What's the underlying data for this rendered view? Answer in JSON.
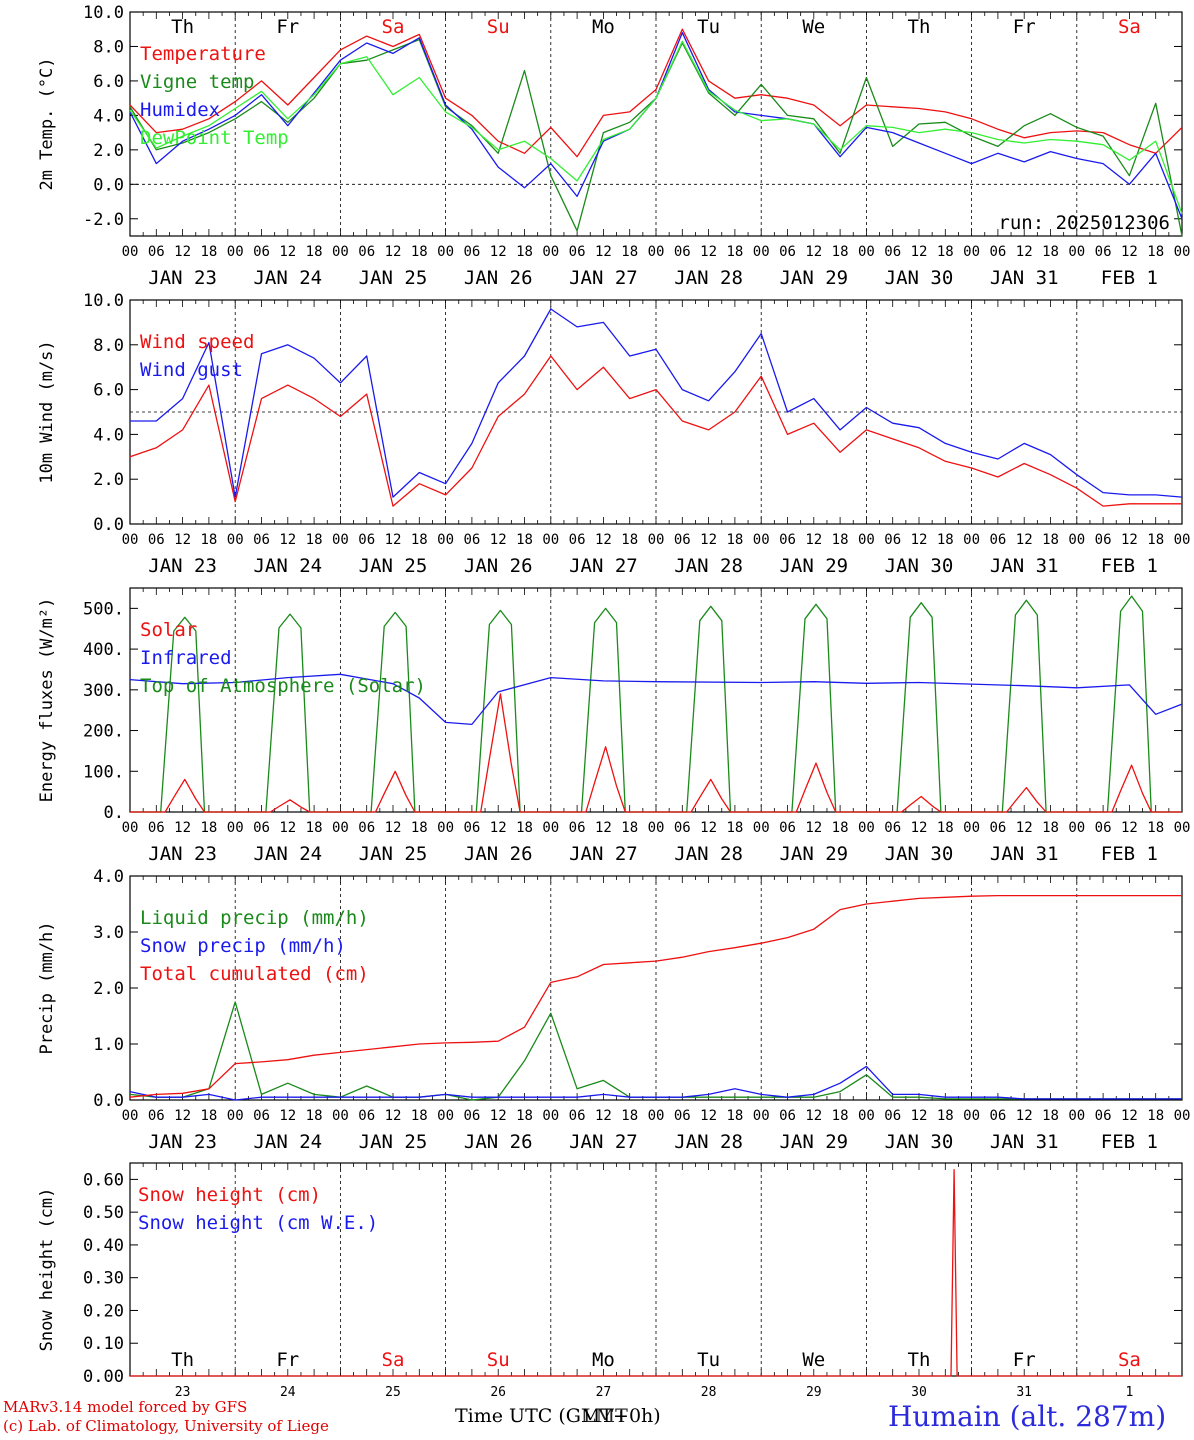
{
  "colors": {
    "red": "#ee1111",
    "green": "#1a8a1a",
    "blue": "#1a1aee",
    "lime": "#33ee33",
    "frame": "#000000",
    "weekend": "#ee1111"
  },
  "days": {
    "weekday_top": [
      "Th",
      "Fr",
      "Sa",
      "Su",
      "Mo",
      "Tu",
      "We",
      "Th",
      "Fr",
      "Sa"
    ],
    "weekend_flags": [
      false,
      false,
      true,
      true,
      false,
      false,
      false,
      false,
      false,
      true
    ],
    "date_labels": [
      "JAN 23",
      "JAN 24",
      "JAN 25",
      "JAN 26",
      "JAN 27",
      "JAN 28",
      "JAN 29",
      "JAN 30",
      "JAN 31",
      "FEB  1"
    ],
    "hour_ticks": [
      "00",
      "06",
      "12",
      "18"
    ],
    "day_numbers": [
      "23",
      "24",
      "25",
      "26",
      "27",
      "28",
      "29",
      "30",
      "31",
      "1"
    ]
  },
  "footer": {
    "credit_line1": "MARv3.14 model forced by GFS",
    "credit_line2": "(c) Lab. of Climatology, University of Liege",
    "x_title_a": "Time UTC (GMT+0h)",
    "x_title_b": "LMT",
    "station": "Humain (alt. 287m)"
  },
  "chart_data": [
    {
      "type": "line",
      "ylabel": "2m Temp. (°C)",
      "ylim": [
        -3,
        10
      ],
      "yticks": [
        "-2.0",
        "0.0",
        "2.0",
        "4.0",
        "6.0",
        "8.0",
        "10.0"
      ],
      "ytick_values": [
        -2,
        0,
        2,
        4,
        6,
        8,
        10
      ],
      "ref_line": 0,
      "annotation": "run: 2025012306",
      "x_hours": [
        0,
        6,
        12,
        18,
        24,
        30,
        36,
        42,
        48,
        54,
        60,
        66,
        72,
        78,
        84,
        90,
        96,
        102,
        108,
        114,
        120,
        126,
        132,
        138,
        144,
        150,
        156,
        162,
        168,
        174,
        180,
        186,
        192,
        198,
        204,
        210,
        216,
        222,
        228,
        234,
        240
      ],
      "series": [
        {
          "name": "Temperature",
          "color": "red",
          "values": [
            4.6,
            3.0,
            3.2,
            3.8,
            4.8,
            6.0,
            4.6,
            6.2,
            7.8,
            8.6,
            8.0,
            8.7,
            5.0,
            4.0,
            2.5,
            1.8,
            3.3,
            1.6,
            4.0,
            4.2,
            5.5,
            9.0,
            6.0,
            5.0,
            5.2,
            5.0,
            4.6,
            3.4,
            4.6,
            4.5,
            4.4,
            4.2,
            3.8,
            3.2,
            2.7,
            3.0,
            3.1,
            3.0,
            2.3,
            1.8,
            3.3
          ]
        },
        {
          "name": "Vigne temp",
          "color": "green",
          "values": [
            4.5,
            2.0,
            2.4,
            3.0,
            3.8,
            4.8,
            3.6,
            5.0,
            7.0,
            7.2,
            7.8,
            8.4,
            4.5,
            3.4,
            1.8,
            6.6,
            0.5,
            -2.7,
            3.0,
            3.6,
            5.0,
            8.2,
            5.3,
            4.0,
            5.8,
            4.0,
            3.8,
            1.8,
            6.2,
            2.2,
            3.5,
            3.6,
            2.8,
            2.2,
            3.4,
            4.1,
            3.3,
            2.8,
            0.5,
            4.7,
            -3.0
          ]
        },
        {
          "name": "Humidex",
          "color": "blue",
          "values": [
            4.2,
            1.2,
            2.5,
            3.2,
            4.0,
            5.2,
            3.4,
            5.3,
            7.2,
            8.2,
            7.6,
            8.5,
            4.6,
            3.2,
            1.0,
            -0.2,
            1.2,
            -0.7,
            2.5,
            3.2,
            5.0,
            8.8,
            5.5,
            4.2,
            4.0,
            3.8,
            3.5,
            1.6,
            3.3,
            3.0,
            2.4,
            1.8,
            1.2,
            1.8,
            1.3,
            1.9,
            1.5,
            1.2,
            0.0,
            1.8,
            -2.0
          ]
        },
        {
          "name": "DewPoint Temp",
          "color": "lime",
          "values": [
            4.3,
            2.1,
            2.8,
            3.4,
            4.4,
            5.4,
            3.8,
            5.2,
            7.0,
            7.4,
            5.2,
            6.2,
            4.2,
            3.3,
            2.0,
            2.5,
            1.5,
            0.2,
            2.6,
            3.2,
            5.0,
            8.3,
            5.4,
            4.3,
            3.7,
            3.8,
            3.5,
            2.0,
            3.4,
            3.3,
            3.0,
            3.2,
            3.0,
            2.6,
            2.4,
            2.6,
            2.5,
            2.3,
            1.4,
            2.5,
            -1.7
          ]
        }
      ]
    },
    {
      "type": "line",
      "ylabel": "10m Wind (m/s)",
      "ylim": [
        0,
        10
      ],
      "yticks": [
        "0.0",
        "2.0",
        "4.0",
        "6.0",
        "8.0",
        "10.0"
      ],
      "ytick_values": [
        0,
        2,
        4,
        6,
        8,
        10
      ],
      "ref_line": 5,
      "x_hours": [
        0,
        6,
        12,
        18,
        24,
        30,
        36,
        42,
        48,
        54,
        60,
        66,
        72,
        78,
        84,
        90,
        96,
        102,
        108,
        114,
        120,
        126,
        132,
        138,
        144,
        150,
        156,
        162,
        168,
        174,
        180,
        186,
        192,
        198,
        204,
        210,
        216,
        222,
        228,
        234,
        240
      ],
      "series": [
        {
          "name": "Wind speed",
          "color": "red",
          "values": [
            3.0,
            3.4,
            4.2,
            6.2,
            1.0,
            5.6,
            6.2,
            5.6,
            4.8,
            5.8,
            0.8,
            1.8,
            1.3,
            2.5,
            4.8,
            5.8,
            7.5,
            6.0,
            7.0,
            5.6,
            6.0,
            4.6,
            4.2,
            5.0,
            6.6,
            4.0,
            4.5,
            3.2,
            4.2,
            3.8,
            3.4,
            2.8,
            2.5,
            2.1,
            2.7,
            2.2,
            1.6,
            0.8,
            0.9,
            0.9,
            0.9
          ]
        },
        {
          "name": "Wind gust",
          "color": "blue",
          "values": [
            4.6,
            4.6,
            5.6,
            8.1,
            1.2,
            7.6,
            8.0,
            7.4,
            6.3,
            7.5,
            1.2,
            2.3,
            1.8,
            3.6,
            6.3,
            7.5,
            9.6,
            8.8,
            9.0,
            7.5,
            7.8,
            6.0,
            5.5,
            6.8,
            8.5,
            5.0,
            5.6,
            4.2,
            5.2,
            4.5,
            4.3,
            3.6,
            3.2,
            2.9,
            3.6,
            3.1,
            2.2,
            1.4,
            1.3,
            1.3,
            1.2
          ]
        }
      ]
    },
    {
      "type": "line",
      "ylabel": "Energy fluxes (W/m²)",
      "ylim": [
        0,
        550
      ],
      "yticks": [
        "0.",
        "100.",
        "200.",
        "300.",
        "400.",
        "500."
      ],
      "ytick_values": [
        0,
        100,
        200,
        300,
        400,
        500
      ],
      "toa_peaks": [
        478,
        486,
        490,
        495,
        500,
        505,
        510,
        514,
        520,
        530
      ],
      "solar_peaks": [
        80,
        30,
        100,
        290,
        160,
        80,
        120,
        38,
        60,
        115
      ],
      "infrared": {
        "hours": [
          0,
          12,
          24,
          36,
          48,
          60,
          66,
          72,
          78,
          84,
          96,
          108,
          120,
          144,
          156,
          168,
          180,
          192,
          204,
          216,
          228,
          234,
          240
        ],
        "values": [
          325,
          315,
          318,
          330,
          338,
          315,
          280,
          220,
          215,
          295,
          330,
          322,
          320,
          318,
          320,
          316,
          318,
          314,
          310,
          305,
          312,
          240,
          265
        ]
      },
      "series": [
        {
          "name": "Solar",
          "color": "red"
        },
        {
          "name": "Infrared",
          "color": "blue"
        },
        {
          "name": "Top of Atmosphere (Solar)",
          "color": "green"
        }
      ]
    },
    {
      "type": "line",
      "ylabel": "Precip (mm/h)",
      "ylim": [
        0,
        4
      ],
      "yticks": [
        "0.0",
        "1.0",
        "2.0",
        "3.0",
        "4.0"
      ],
      "ytick_values": [
        0,
        1,
        2,
        3,
        4
      ],
      "x_hours": [
        0,
        6,
        12,
        18,
        24,
        30,
        36,
        42,
        48,
        54,
        60,
        66,
        72,
        78,
        84,
        90,
        96,
        102,
        108,
        114,
        120,
        126,
        132,
        138,
        144,
        150,
        156,
        162,
        168,
        174,
        180,
        186,
        192,
        198,
        204,
        210,
        216,
        222,
        228,
        234,
        240
      ],
      "series": [
        {
          "name": "Liquid precip (mm/h)",
          "color": "green",
          "values": [
            0.1,
            0.05,
            0.05,
            0.2,
            1.75,
            0.1,
            0.3,
            0.1,
            0.05,
            0.25,
            0.05,
            0.05,
            0.1,
            0.0,
            0.05,
            0.7,
            1.55,
            0.2,
            0.35,
            0.05,
            0.05,
            0.05,
            0.05,
            0.05,
            0.05,
            0.05,
            0.05,
            0.15,
            0.45,
            0.05,
            0.05,
            0.02,
            0.02,
            0.02,
            0.02,
            0.02,
            0.02,
            0.02,
            0.02,
            0.02,
            0.02
          ]
        },
        {
          "name": "Snow precip (mm/h)",
          "color": "blue",
          "values": [
            0.15,
            0.05,
            0.05,
            0.1,
            0.0,
            0.05,
            0.05,
            0.05,
            0.05,
            0.05,
            0.05,
            0.05,
            0.1,
            0.05,
            0.05,
            0.05,
            0.05,
            0.05,
            0.1,
            0.05,
            0.05,
            0.05,
            0.1,
            0.2,
            0.1,
            0.05,
            0.1,
            0.3,
            0.6,
            0.1,
            0.1,
            0.05,
            0.05,
            0.05,
            0.02,
            0.02,
            0.02,
            0.02,
            0.02,
            0.02,
            0.02
          ]
        },
        {
          "name": "Total cumulated (cm)",
          "color": "red",
          "values": [
            0.05,
            0.1,
            0.12,
            0.2,
            0.65,
            0.68,
            0.72,
            0.8,
            0.85,
            0.9,
            0.95,
            1.0,
            1.02,
            1.03,
            1.05,
            1.3,
            2.1,
            2.2,
            2.42,
            2.45,
            2.48,
            2.55,
            2.65,
            2.72,
            2.8,
            2.9,
            3.05,
            3.4,
            3.5,
            3.55,
            3.6,
            3.62,
            3.64,
            3.65,
            3.65,
            3.65,
            3.65,
            3.65,
            3.65,
            3.65,
            3.65
          ]
        }
      ]
    },
    {
      "type": "line",
      "ylabel": "Snow height (cm)",
      "ylim": [
        0,
        0.65
      ],
      "yticks": [
        "0.00",
        "0.10",
        "0.20",
        "0.30",
        "0.40",
        "0.50",
        "0.60"
      ],
      "ytick_values": [
        0,
        0.1,
        0.2,
        0.3,
        0.4,
        0.5,
        0.6
      ],
      "spike": {
        "hour": 188,
        "value": 0.63
      },
      "series": [
        {
          "name": "Snow height (cm)",
          "color": "red"
        },
        {
          "name": "Snow height (cm W.E.)",
          "color": "blue"
        }
      ]
    }
  ]
}
